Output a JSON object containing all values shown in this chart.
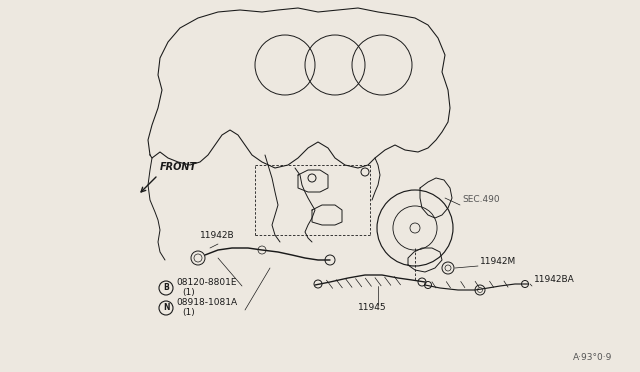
{
  "bg_color": "#ffffff",
  "line_color": "#1a1a1a",
  "diagram_note": "A·93°0·9",
  "labels": {
    "FRONT": "FRONT",
    "SEC490": "SEC.490",
    "11942B": "11942B",
    "08120_8801E": "08120-8801E",
    "08120_qty": "(1)",
    "08918_1081A": "08918-1081A",
    "08918_qty": "(1)",
    "11942M": "11942M",
    "11942BA": "11942BA",
    "11945": "11945",
    "B_circle": "B",
    "N_circle": "N"
  },
  "font_size_small": 6.5,
  "lw": 0.7,
  "bg_actual": "#ede8e0"
}
